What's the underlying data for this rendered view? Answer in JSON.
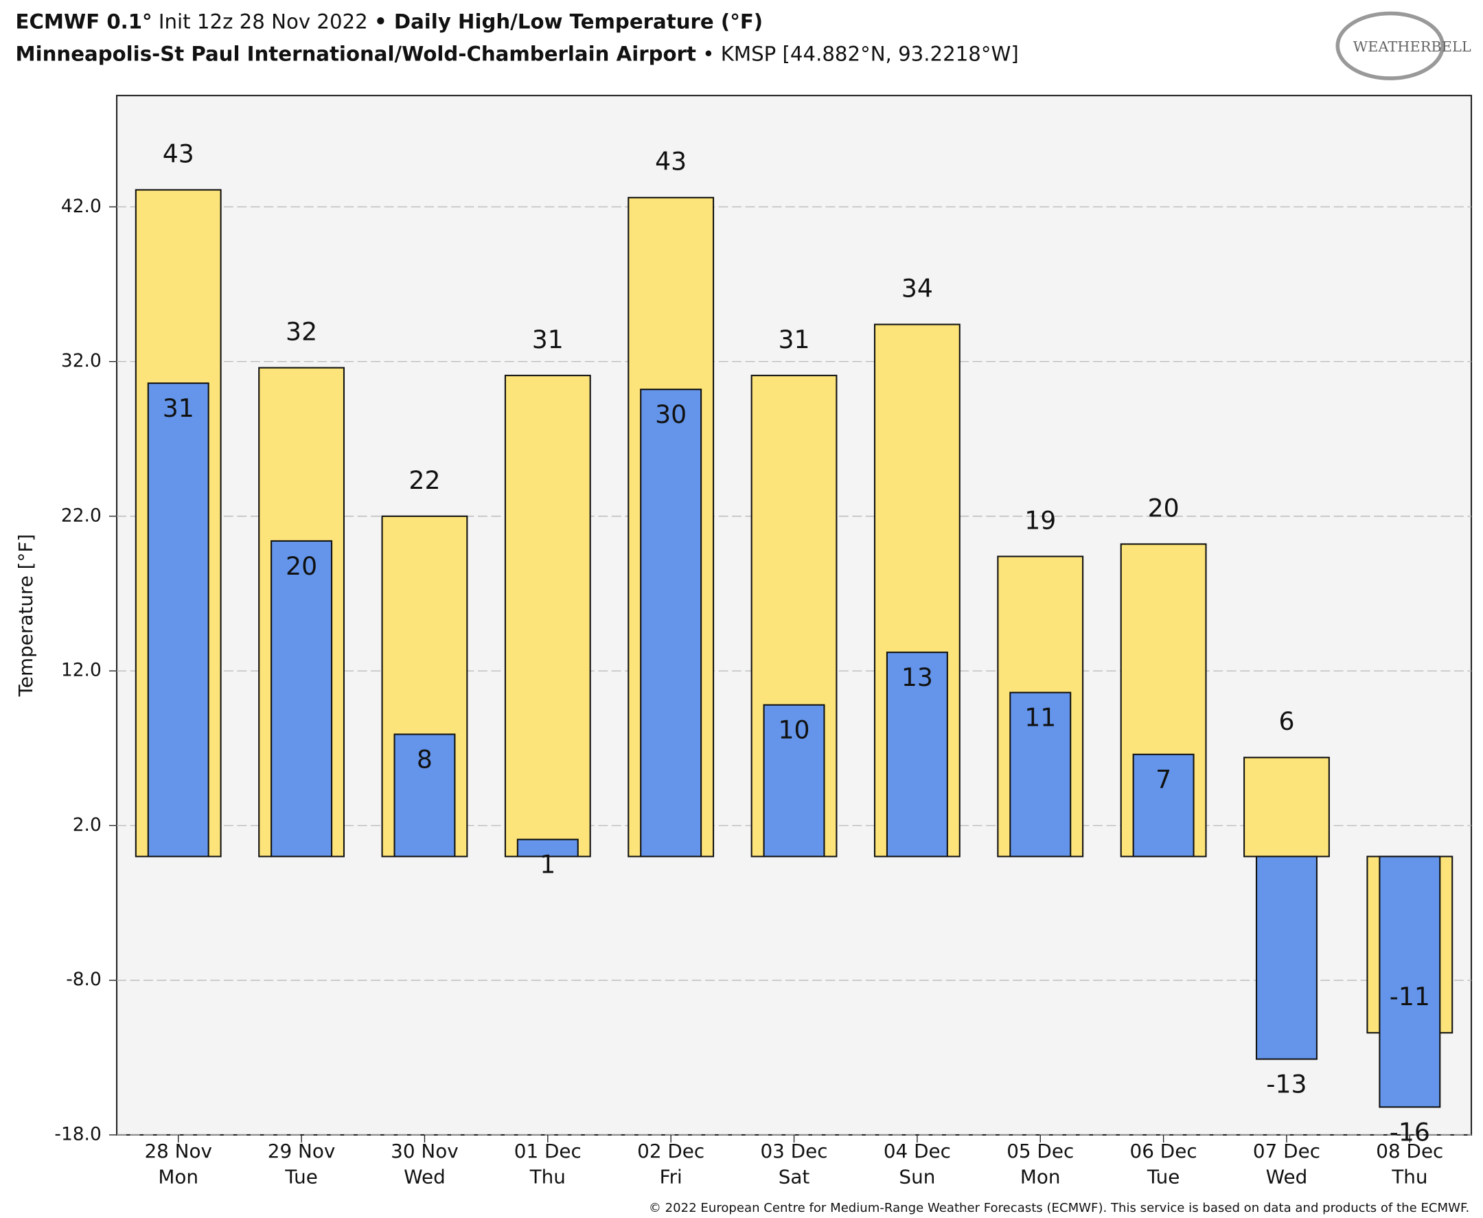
{
  "header": {
    "title": [
      "ECMWF 0.1°",
      " Init 12z 28 Nov 2022 ",
      "•",
      " Daily High/Low Temperature (°F)"
    ],
    "subtitle": [
      "Minneapolis-St Paul International/Wold-Chamberlain Airport",
      " • KMSP [44.882°N, 93.2218°W]"
    ],
    "logo": "WEATHERBELL"
  },
  "footer": "© 2022 European Centre for Medium-Range Weather Forecasts (ECMWF). This service is based on data and products of the ECMWF.",
  "chart_data": {
    "type": "bar",
    "y_label": "Temperature [°F]",
    "categories": [
      [
        "28 Nov",
        "Mon"
      ],
      [
        "29 Nov",
        "Tue"
      ],
      [
        "30 Nov",
        "Wed"
      ],
      [
        "01 Dec",
        "Thu"
      ],
      [
        "02 Dec",
        "Fri"
      ],
      [
        "03 Dec",
        "Sat"
      ],
      [
        "04 Dec",
        "Sun"
      ],
      [
        "05 Dec",
        "Mon"
      ],
      [
        "06 Dec",
        "Tue"
      ],
      [
        "07 Dec",
        "Wed"
      ],
      [
        "08 Dec",
        "Thu"
      ]
    ],
    "series": [
      {
        "color": "#fce47a",
        "values": [
          43.1,
          31.6,
          22.0,
          31.1,
          42.6,
          31.1,
          34.4,
          19.4,
          20.2,
          6.4,
          -11.4
        ],
        "value_labels": [
          "43",
          "32",
          "22",
          "31",
          "43",
          "31",
          "34",
          "19",
          "20",
          "6",
          "-11"
        ]
      },
      {
        "color": "#6495ea",
        "values": [
          30.6,
          20.4,
          7.9,
          1.1,
          30.2,
          9.8,
          13.2,
          10.6,
          6.6,
          -13.1,
          -16.2
        ],
        "value_labels": [
          "31",
          "20",
          "8",
          "1",
          "30",
          "10",
          "13",
          "11",
          "7",
          "-13",
          "-16"
        ]
      }
    ],
    "ylim": [
      -18,
      49.2
    ],
    "yticks": [
      {
        "value": -18,
        "label": "-18.0"
      },
      {
        "value": -8,
        "label": "-8.0"
      },
      {
        "value": 2,
        "label": "2.0"
      },
      {
        "value": 12,
        "label": "12.0"
      },
      {
        "value": 22,
        "label": "22.0"
      },
      {
        "value": 32,
        "label": "32.0"
      },
      {
        "value": 42,
        "label": "42.0"
      }
    ],
    "grid": true
  }
}
